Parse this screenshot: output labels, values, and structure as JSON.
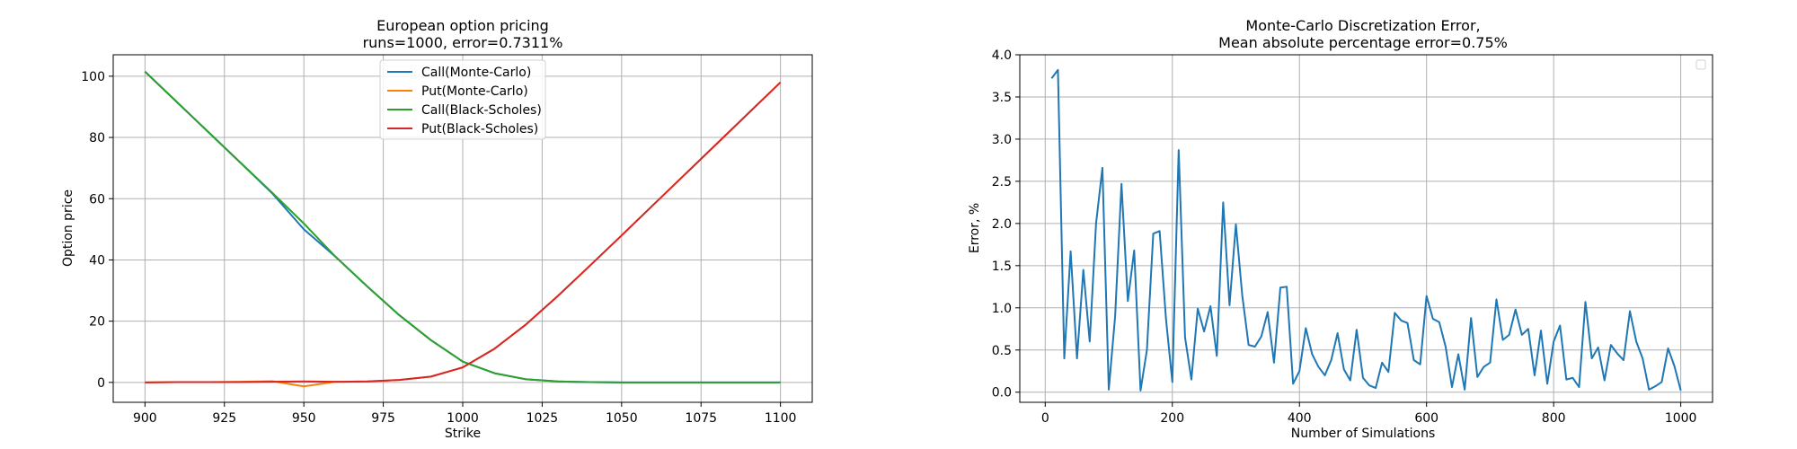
{
  "chart_data": [
    {
      "type": "line",
      "title": "European option pricing\nruns=1000, error=0.7311%",
      "xlabel": "Strike",
      "ylabel": "Option price",
      "xlim": [
        890,
        1110
      ],
      "ylim": [
        -6.5,
        107
      ],
      "xticks": [
        900,
        925,
        950,
        975,
        1000,
        1025,
        1050,
        1075,
        1100
      ],
      "yticks": [
        0,
        20,
        40,
        60,
        80,
        100
      ],
      "grid": true,
      "legend": "upper-center",
      "series": [
        {
          "name": "Call(Monte-Carlo)",
          "color": "#1f77b4",
          "x": [
            900,
            910,
            920,
            930,
            940,
            950,
            960,
            970,
            980,
            990,
            1000,
            1010,
            1020,
            1030,
            1040,
            1050,
            1060,
            1070,
            1080,
            1090,
            1100
          ],
          "y": [
            101.5,
            91.6,
            81.7,
            71.8,
            61.8,
            50.0,
            41.0,
            31.3,
            22.0,
            13.8,
            6.8,
            3.0,
            1.0,
            0.3,
            0.1,
            0.0,
            0.0,
            0.0,
            0.0,
            0.0,
            0.0
          ]
        },
        {
          "name": "Put(Monte-Carlo)",
          "color": "#ff7f0e",
          "x": [
            900,
            910,
            920,
            930,
            940,
            950,
            960,
            970,
            980,
            990,
            1000,
            1010,
            1020,
            1030,
            1040,
            1050,
            1060,
            1070,
            1080,
            1090,
            1100
          ],
          "y": [
            0.0,
            0.1,
            0.1,
            0.2,
            0.4,
            -1.3,
            0.2,
            0.3,
            0.8,
            1.9,
            4.9,
            11.0,
            19.0,
            28.3,
            38.1,
            48.0,
            58.0,
            68.0,
            78.0,
            88.0,
            98.0
          ]
        },
        {
          "name": "Call(Black-Scholes)",
          "color": "#2ca02c",
          "x": [
            900,
            910,
            920,
            930,
            940,
            950,
            960,
            970,
            980,
            990,
            1000,
            1010,
            1020,
            1030,
            1040,
            1050,
            1060,
            1070,
            1080,
            1090,
            1100
          ],
          "y": [
            101.5,
            91.6,
            81.7,
            71.8,
            62.0,
            51.9,
            41.0,
            31.3,
            22.0,
            13.8,
            6.8,
            3.0,
            1.0,
            0.3,
            0.1,
            0.0,
            0.0,
            0.0,
            0.0,
            0.0,
            0.0
          ]
        },
        {
          "name": "Put(Black-Scholes)",
          "color": "#d62728",
          "x": [
            900,
            910,
            920,
            930,
            940,
            950,
            960,
            970,
            980,
            990,
            1000,
            1010,
            1020,
            1030,
            1040,
            1050,
            1060,
            1070,
            1080,
            1090,
            1100
          ],
          "y": [
            0.0,
            0.1,
            0.1,
            0.1,
            0.2,
            0.3,
            0.2,
            0.3,
            0.8,
            1.9,
            4.9,
            11.0,
            19.0,
            28.3,
            38.1,
            48.0,
            58.0,
            68.0,
            78.0,
            88.0,
            98.0
          ]
        }
      ]
    },
    {
      "type": "line",
      "title": "Monte-Carlo Discretization Error,\nMean absolute percentage error=0.75%",
      "xlabel": "Number of Simulations",
      "ylabel": "Error, %",
      "xlim": [
        -40,
        1050
      ],
      "ylim": [
        -0.12,
        4.0
      ],
      "xticks": [
        0,
        200,
        400,
        600,
        800,
        1000
      ],
      "yticks": [
        0.0,
        0.5,
        1.0,
        1.5,
        2.0,
        2.5,
        3.0,
        3.5,
        4.0
      ],
      "grid": true,
      "legend": "upper-right",
      "series": [
        {
          "color": "#1f77b4",
          "x": [
            10,
            20,
            30,
            40,
            50,
            60,
            70,
            80,
            90,
            100,
            110,
            120,
            130,
            140,
            150,
            160,
            170,
            180,
            190,
            200,
            210,
            220,
            230,
            240,
            250,
            260,
            270,
            280,
            290,
            300,
            310,
            320,
            330,
            340,
            350,
            360,
            370,
            380,
            390,
            400,
            410,
            420,
            430,
            440,
            450,
            460,
            470,
            480,
            490,
            500,
            510,
            520,
            530,
            540,
            550,
            560,
            570,
            580,
            590,
            600,
            610,
            620,
            630,
            640,
            650,
            660,
            670,
            680,
            690,
            700,
            710,
            720,
            730,
            740,
            750,
            760,
            770,
            780,
            790,
            800,
            810,
            820,
            830,
            840,
            850,
            860,
            870,
            880,
            890,
            900,
            910,
            920,
            930,
            940,
            950,
            960,
            970,
            980,
            990,
            1000
          ],
          "y": [
            3.72,
            3.82,
            0.4,
            1.67,
            0.4,
            1.45,
            0.6,
            2.0,
            2.66,
            0.03,
            0.9,
            2.47,
            1.08,
            1.68,
            0.02,
            0.5,
            1.88,
            1.91,
            0.87,
            0.12,
            2.87,
            0.65,
            0.15,
            0.99,
            0.72,
            1.02,
            0.43,
            2.25,
            1.03,
            1.99,
            1.15,
            0.56,
            0.54,
            0.66,
            0.95,
            0.35,
            1.24,
            1.25,
            0.1,
            0.25,
            0.76,
            0.45,
            0.3,
            0.2,
            0.38,
            0.7,
            0.27,
            0.14,
            0.74,
            0.17,
            0.08,
            0.05,
            0.35,
            0.24,
            0.94,
            0.85,
            0.82,
            0.38,
            0.33,
            1.14,
            0.87,
            0.83,
            0.54,
            0.06,
            0.45,
            0.03,
            0.88,
            0.18,
            0.3,
            0.35,
            1.1,
            0.62,
            0.68,
            0.98,
            0.68,
            0.75,
            0.2,
            0.73,
            0.1,
            0.6,
            0.79,
            0.15,
            0.17,
            0.06,
            1.07,
            0.4,
            0.53,
            0.14,
            0.56,
            0.46,
            0.38,
            0.96,
            0.6,
            0.4,
            0.03,
            0.07,
            0.12,
            0.52,
            0.31,
            0.02
          ]
        }
      ]
    }
  ]
}
